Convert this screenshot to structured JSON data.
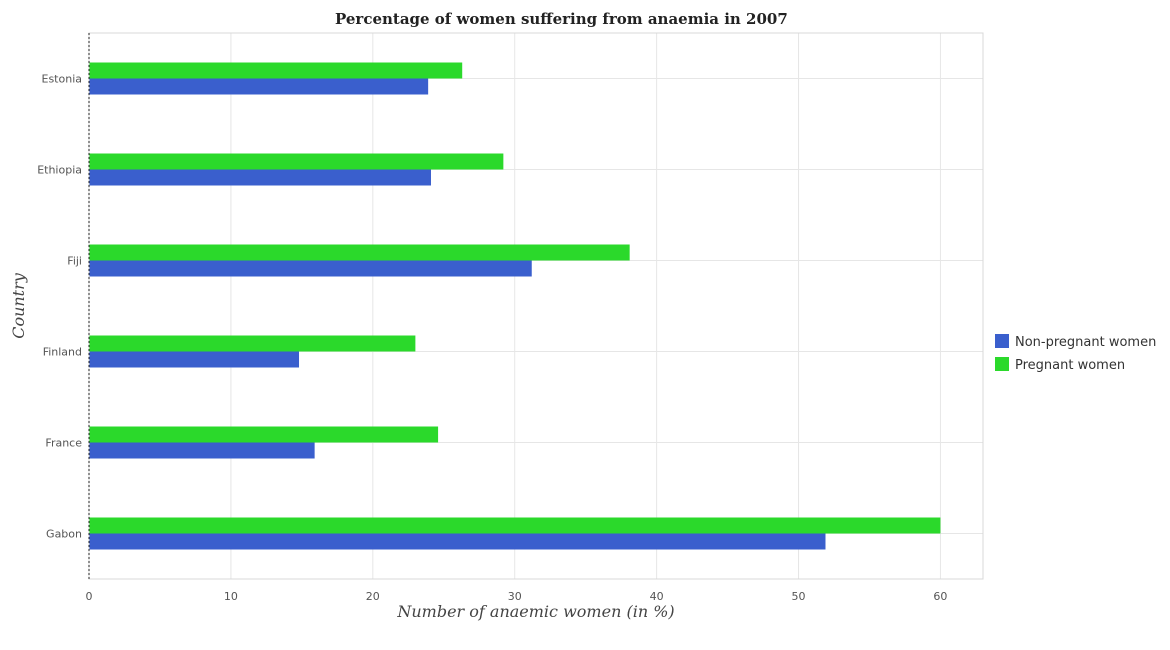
{
  "chart_data": {
    "type": "bar",
    "orientation": "horizontal",
    "title": "Percentage of women suffering from anaemia in 2007",
    "xlabel": "Number of anaemic women (in %)",
    "ylabel": "Country",
    "categories": [
      "Estonia",
      "Ethiopia",
      "Fiji",
      "Finland",
      "France",
      "Gabon"
    ],
    "series": [
      {
        "name": "Non-pregnant women",
        "color": "#3a5fcd",
        "values": [
          23.9,
          24.1,
          31.2,
          14.8,
          15.9,
          51.9
        ]
      },
      {
        "name": "Pregnant women",
        "color": "#2bd92b",
        "values": [
          26.3,
          29.2,
          38.1,
          23.0,
          24.6,
          60.0
        ]
      }
    ],
    "xlim": [
      0,
      63
    ],
    "xticks": [
      0,
      10,
      20,
      30,
      40,
      50,
      60
    ],
    "grid": true,
    "legend_position": "right"
  }
}
